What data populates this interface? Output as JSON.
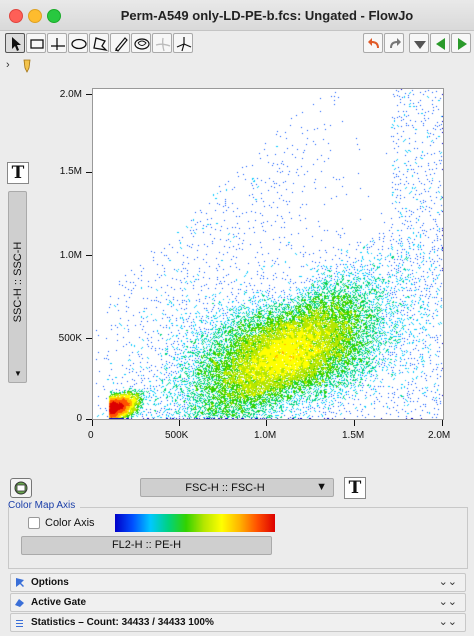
{
  "window": {
    "title": "Perm-A549 only-LD-PE-b.fcs: Ungated - FlowJo"
  },
  "toolbar": {
    "left_tools": [
      "pointer-icon",
      "rectangle-gate-icon",
      "quadrant-gate-icon",
      "ellipse-gate-icon",
      "polygon-gate-icon",
      "freehand-gate-icon",
      "spider-gate-icon",
      "curly-quad-icon",
      "spider-quad-icon"
    ],
    "right_tools": [
      "undo-icon",
      "redo-icon",
      "drop-down-icon",
      "back-icon",
      "forward-icon"
    ]
  },
  "breadcrumb": {
    "expander": "›"
  },
  "plot": {
    "y_axis": {
      "parameter": "SSC-H :: SSC-H",
      "ticks": [
        "2.0M",
        "1.5M",
        "1.0M",
        "500K",
        "0"
      ]
    },
    "x_axis": {
      "parameter": "FSC-H :: FSC-H",
      "ticks": [
        "0",
        "500K",
        "1.0M",
        "1.5M",
        "2.0M"
      ]
    },
    "text_button": "T"
  },
  "chart_data": {
    "type": "scatter",
    "xlabel": "FSC-H :: FSC-H",
    "ylabel": "SSC-H :: SSC-H",
    "xlim": [
      0,
      2000000
    ],
    "ylim": [
      0,
      2000000
    ],
    "x_ticks": [
      "0",
      "500K",
      "1.0M",
      "1.5M",
      "2.0M"
    ],
    "y_ticks": [
      "0",
      "500K",
      "1.0M",
      "1.5M",
      "2.0M"
    ],
    "populations": [
      {
        "center": [
          1100000,
          400000
        ],
        "spread_x": 280000,
        "spread_y": 130000,
        "tilt": 0.38
      },
      {
        "center": [
          110000,
          60000
        ],
        "spread_x": 45000,
        "spread_y": 35000,
        "tilt": 0.5
      }
    ],
    "color_scale": [
      "#0000c8",
      "#0050ff",
      "#00c8ff",
      "#00d280",
      "#32d200",
      "#b4e600",
      "#ffff00",
      "#ffb400",
      "#ff5000",
      "#dc0000"
    ]
  },
  "color_map": {
    "section_title": "Color Map Axis",
    "checkbox_label": "Color Axis",
    "checked": false,
    "parameter": "FL2-H :: PE-H"
  },
  "panels": {
    "options": "Options",
    "active_gate": "Active Gate",
    "statistics": "Statistics  –  Count: 34433 / 34433     100%"
  }
}
